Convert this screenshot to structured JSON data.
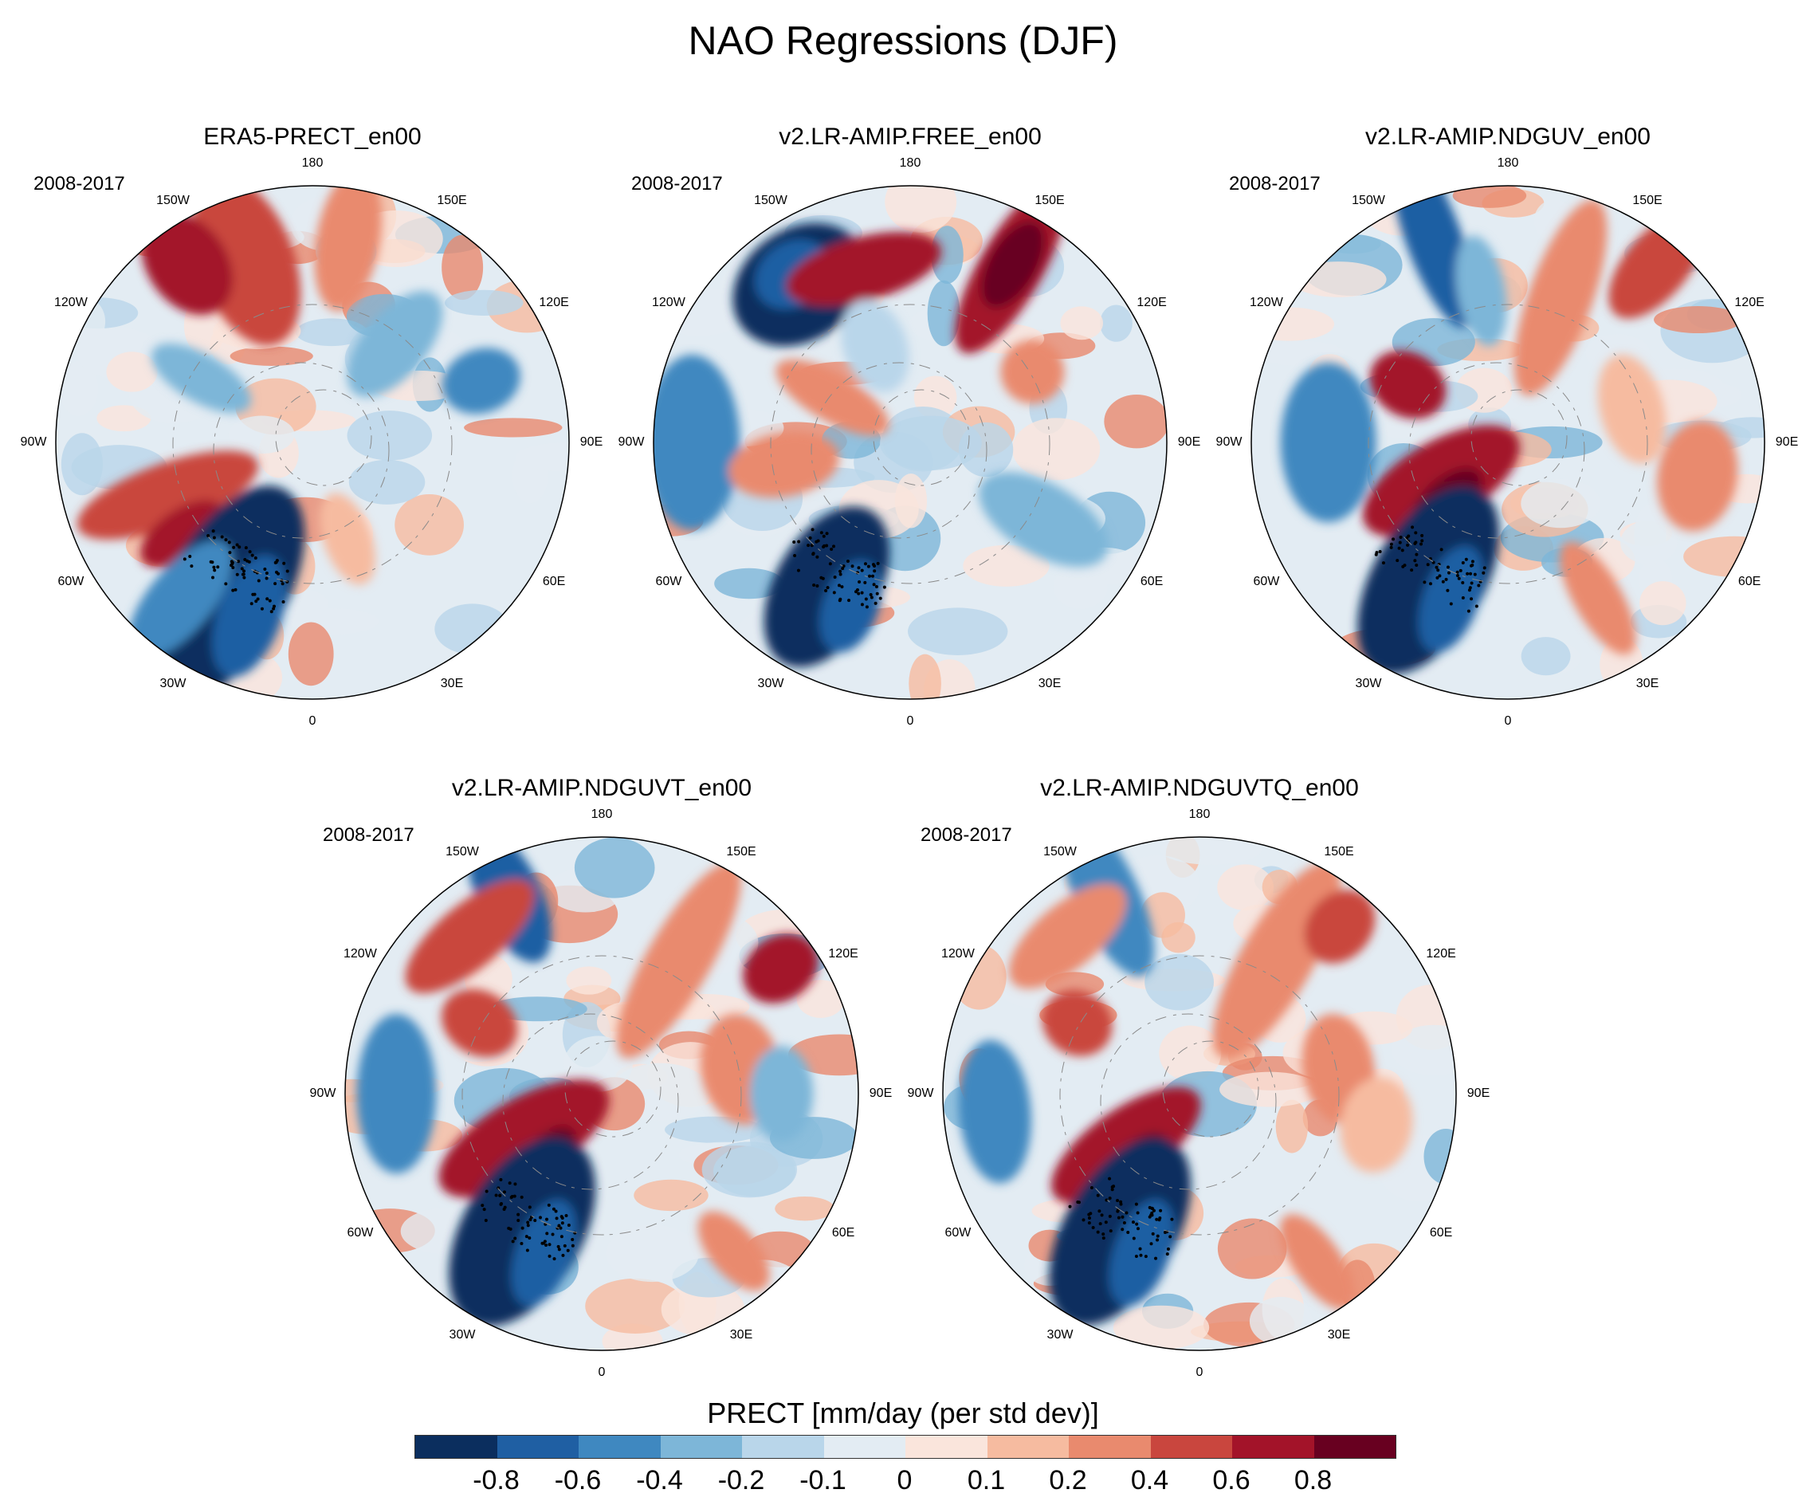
{
  "title": "NAO Regressions (DJF)",
  "period": "2008-2017",
  "longitude_labels": [
    "180",
    "150E",
    "120E",
    "90E",
    "60E",
    "30E",
    "0",
    "30W",
    "60W",
    "90W",
    "120W",
    "150W"
  ],
  "panels": [
    {
      "title": "ERA5-PRECT_en00",
      "period": "2008-2017"
    },
    {
      "title": "v2.LR-AMIP.FREE_en00",
      "period": "2008-2017"
    },
    {
      "title": "v2.LR-AMIP.NDGUV_en00",
      "period": "2008-2017"
    },
    {
      "title": "v2.LR-AMIP.NDGUVT_en00",
      "period": "2008-2017"
    },
    {
      "title": "v2.LR-AMIP.NDGUVTQ_en00",
      "period": "2008-2017"
    }
  ],
  "colorbar": {
    "title": "PRECT [mm/day (per std dev)]",
    "labels": [
      "-0.8",
      "-0.6",
      "-0.4",
      "-0.2",
      "-0.1",
      "0",
      "0.1",
      "0.2",
      "0.4",
      "0.6",
      "0.8"
    ],
    "colors": [
      "#0b2e5e",
      "#1f5fa3",
      "#3f88c0",
      "#7db6d8",
      "#b9d6ea",
      "#e3ecf3",
      "#fae5dc",
      "#f6bba0",
      "#e98a6e",
      "#c9463e",
      "#a31329",
      "#680020"
    ]
  },
  "map_colors": {
    "neutral_light_blue": "#e3ecf3",
    "neutral_light_red": "#fae5dc",
    "coast": "#8a8a8a"
  }
}
